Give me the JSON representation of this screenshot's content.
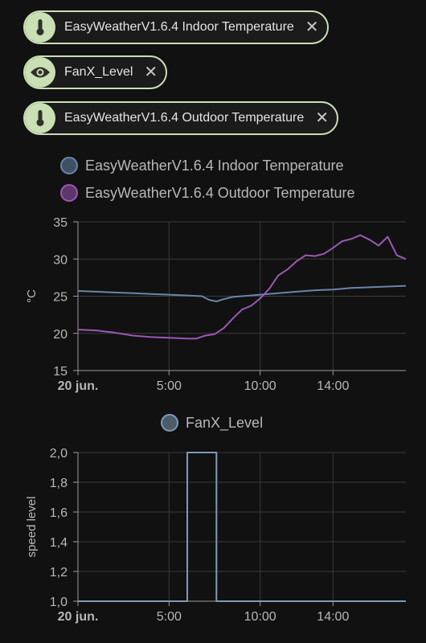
{
  "chips": [
    {
      "label": "EasyWeatherV1.6.4 Indoor Temperature",
      "icon": "thermometer-icon"
    },
    {
      "label": "FanX_Level",
      "icon": "eye-icon"
    },
    {
      "label": "EasyWeatherV1.6.4 Outdoor Temperature",
      "icon": "thermometer-icon"
    }
  ],
  "close_glyph": "✕",
  "colors": {
    "accent": "#c9dfb4",
    "indoor": "#6885a8",
    "outdoor": "#9a58b6",
    "fan": "#7e9ab6",
    "grid": "#3a3a3a",
    "axis": "#9a9a9a"
  },
  "chart_data": [
    {
      "type": "line",
      "legend": [
        "EasyWeatherV1.6.4 Indoor Temperature",
        "EasyWeatherV1.6.4 Outdoor Temperature"
      ],
      "ylabel": "°C",
      "ylim": [
        15,
        35
      ],
      "y_ticks": [
        "35",
        "30",
        "25",
        "20",
        "15"
      ],
      "x_ticks": [
        "20 jun.",
        "5:00",
        "10:00",
        "14:00"
      ],
      "x_hours": [
        0,
        5,
        10,
        14
      ],
      "xlim_hours": [
        0,
        18
      ],
      "grid": true,
      "series": [
        {
          "name": "EasyWeatherV1.6.4 Indoor Temperature",
          "color": "#6885a8",
          "x": [
            0,
            1,
            2,
            3,
            4,
            5,
            6,
            6.8,
            7.2,
            7.6,
            8,
            8.5,
            9,
            10,
            11,
            12,
            13,
            14,
            15,
            16,
            17,
            18
          ],
          "y": [
            25.7,
            25.6,
            25.5,
            25.4,
            25.3,
            25.2,
            25.1,
            25.0,
            24.5,
            24.3,
            24.6,
            24.9,
            25.0,
            25.2,
            25.4,
            25.6,
            25.8,
            25.9,
            26.1,
            26.2,
            26.3,
            26.4
          ]
        },
        {
          "name": "EasyWeatherV1.6.4 Outdoor Temperature",
          "color": "#9a58b6",
          "x": [
            0,
            1,
            2,
            3,
            4,
            5,
            6,
            6.5,
            7,
            7.5,
            8,
            8.5,
            9,
            9.5,
            10,
            10.5,
            11,
            11.5,
            12,
            12.5,
            13,
            13.5,
            14,
            14.5,
            15,
            15.5,
            16,
            16.5,
            17,
            17.5,
            18
          ],
          "y": [
            20.5,
            20.4,
            20.1,
            19.7,
            19.5,
            19.4,
            19.3,
            19.3,
            19.7,
            19.9,
            20.7,
            22.0,
            23.2,
            23.7,
            24.7,
            26.0,
            27.8,
            28.6,
            29.7,
            30.5,
            30.4,
            30.7,
            31.5,
            32.4,
            32.7,
            33.2,
            32.6,
            31.8,
            33.0,
            30.5,
            30.0
          ]
        }
      ]
    },
    {
      "type": "line",
      "legend": [
        "FanX_Level"
      ],
      "ylabel": "speed level",
      "ylim": [
        1.0,
        2.0
      ],
      "y_ticks": [
        "2,0",
        "1,8",
        "1,6",
        "1,4",
        "1,2",
        "1,0"
      ],
      "x_ticks": [
        "20 jun.",
        "5:00",
        "10:00",
        "14:00"
      ],
      "x_hours": [
        0,
        5,
        10,
        14
      ],
      "xlim_hours": [
        0,
        18
      ],
      "grid": true,
      "series": [
        {
          "name": "FanX_Level",
          "color": "#7e9ab6",
          "step": true,
          "x": [
            0,
            6,
            6,
            7.6,
            7.6,
            18
          ],
          "y": [
            1.0,
            1.0,
            2.0,
            2.0,
            1.0,
            1.0
          ]
        }
      ]
    }
  ]
}
